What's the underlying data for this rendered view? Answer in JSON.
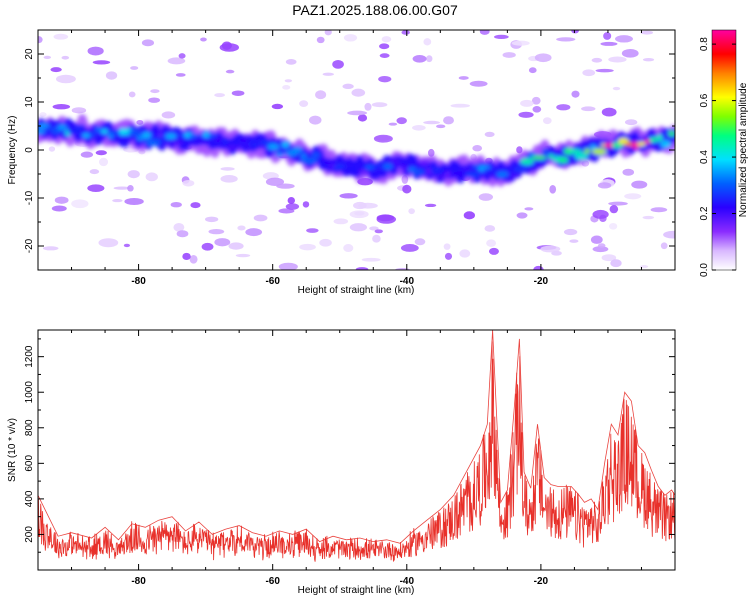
{
  "title": "PAZ1.2025.188.06.00.G07",
  "colors": {
    "snr_line": "#e8302a",
    "spectrogram_low": "#ffffff",
    "spectrogram_scale": [
      "#ffffff",
      "#d9b8ff",
      "#8a2cff",
      "#2a00ff",
      "#0060ff",
      "#00e0ff",
      "#00ff80",
      "#80ff00",
      "#ffff00",
      "#ff8000",
      "#ff0000",
      "#ff00a0"
    ]
  },
  "chart_data": [
    {
      "type": "heatmap",
      "title": "PAZ1.2025.188.06.00.G07",
      "xlabel": "Height of straight line (km)",
      "ylabel": "Frequency (Hz)",
      "xlim": [
        -95,
        0
      ],
      "ylim": [
        -25,
        25
      ],
      "x_ticks": [
        -80,
        -60,
        -40,
        -20
      ],
      "x_tick_labels": [
        "-80",
        "-60",
        "-40",
        "-20"
      ],
      "y_ticks": [
        -20,
        -10,
        0,
        10,
        20
      ],
      "y_tick_labels": [
        "-20",
        "-10",
        "0",
        "10",
        "20"
      ],
      "grid": false,
      "colorbar": {
        "label": "Normalized spectral amplitude",
        "range": [
          0,
          0.85
        ],
        "ticks": [
          0.0,
          0.2,
          0.4,
          0.6,
          0.8
        ],
        "tick_labels": [
          "0.0",
          "0.2",
          "0.4",
          "0.6",
          "0.8"
        ]
      },
      "ridge": {
        "x": [
          -95,
          -90,
          -85,
          -80,
          -75,
          -70,
          -65,
          -60,
          -55,
          -50,
          -45,
          -40,
          -35,
          -30,
          -25,
          -20,
          -15,
          -10,
          -5,
          0
        ],
        "frequency": [
          4.5,
          4,
          3.5,
          3,
          2.5,
          2,
          1.5,
          0.5,
          -1,
          -3,
          -4,
          -3,
          -4.5,
          -4,
          -5,
          -1.5,
          -1,
          1,
          1.5,
          2.5
        ],
        "amplitude": [
          0.3,
          0.35,
          0.4,
          0.35,
          0.3,
          0.35,
          0.3,
          0.3,
          0.35,
          0.3,
          0.25,
          0.3,
          0.25,
          0.3,
          0.3,
          0.45,
          0.4,
          0.75,
          0.8,
          0.5
        ]
      }
    },
    {
      "type": "line",
      "xlabel": "Height of straight line (km)",
      "ylabel": "SNR (10 * v/v)",
      "xlim": [
        -95,
        0
      ],
      "ylim": [
        0,
        1350
      ],
      "x_ticks": [
        -80,
        -60,
        -40,
        -20
      ],
      "x_tick_labels": [
        "-80",
        "-60",
        "-40",
        "-20"
      ],
      "y_ticks": [
        200,
        400,
        600,
        800,
        1000,
        1200
      ],
      "y_tick_labels": [
        "200",
        "400",
        "600",
        "800",
        "1000",
        "1200"
      ],
      "grid": false,
      "x": [
        -95,
        -92,
        -90,
        -87,
        -85,
        -83,
        -81,
        -79,
        -77,
        -75,
        -73,
        -71,
        -69,
        -67,
        -65,
        -63,
        -61,
        -59,
        -57,
        -55,
        -53,
        -51,
        -49,
        -47,
        -45,
        -43,
        -41,
        -39,
        -37,
        -35,
        -33,
        -31,
        -29,
        -28,
        -27.2,
        -26,
        -25,
        -24,
        -23.2,
        -22.5,
        -21.5,
        -20.5,
        -19.5,
        -18.5,
        -17.5,
        -16.5,
        -15.5,
        -14.5,
        -13.5,
        -12.5,
        -11.5,
        -10.5,
        -9.5,
        -8.5,
        -7.5,
        -6.5,
        -5.5,
        -4.5,
        -3.5,
        -2.5,
        -1.5,
        -0.5,
        0
      ],
      "values": [
        420,
        190,
        210,
        180,
        240,
        170,
        260,
        240,
        280,
        300,
        220,
        270,
        200,
        230,
        250,
        210,
        190,
        220,
        200,
        230,
        160,
        190,
        170,
        180,
        160,
        170,
        150,
        220,
        280,
        340,
        420,
        560,
        700,
        820,
        1350,
        380,
        450,
        900,
        1300,
        550,
        460,
        820,
        520,
        480,
        470,
        470,
        470,
        430,
        380,
        400,
        340,
        600,
        820,
        760,
        1000,
        950,
        700,
        660,
        560,
        470,
        420,
        450,
        420
      ]
    }
  ]
}
